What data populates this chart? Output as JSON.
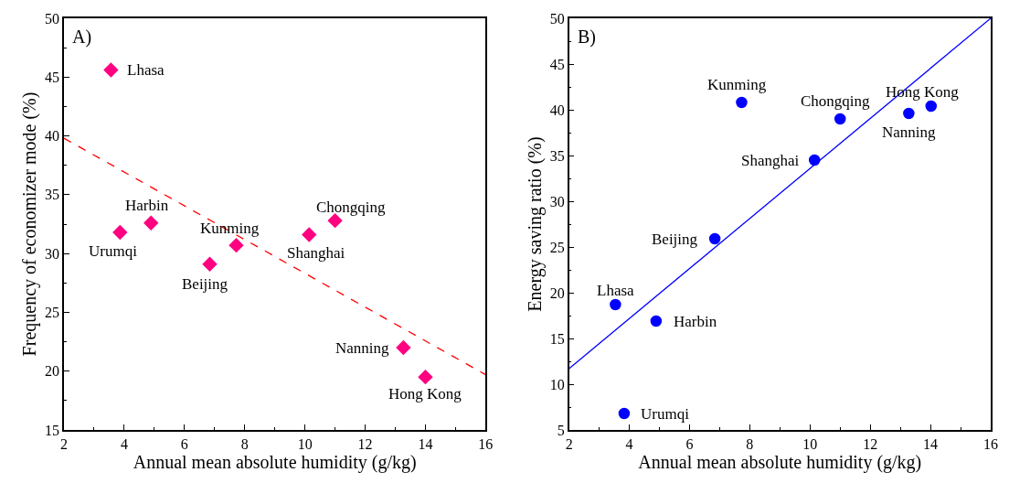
{
  "chart_data": [
    {
      "type": "scatter",
      "title": "A)",
      "xlabel": "Annual mean absolute humidity (g/kg)",
      "ylabel": "Frequency of economizer mode (%)",
      "xlim": [
        2,
        16
      ],
      "xticks": [
        2,
        4,
        6,
        8,
        10,
        12,
        14,
        16
      ],
      "ylim": [
        15,
        50
      ],
      "yticks": [
        15,
        20,
        25,
        30,
        35,
        40,
        45,
        50
      ],
      "series": [
        {
          "marker": "diamond",
          "color": "#ff0080",
          "x": [
            3.56,
            3.86,
            4.89,
            6.84,
            7.72,
            10.14,
            11.0,
            13.27,
            14.0
          ],
          "values": [
            45.6,
            31.8,
            32.6,
            29.1,
            30.7,
            31.6,
            32.8,
            22.0,
            19.5
          ]
        },
        {
          "type": "line",
          "color": "#ff0000",
          "line_style": "dashed",
          "x": [
            2,
            16
          ],
          "values": [
            39.8,
            19.7
          ]
        }
      ],
      "annotations": [
        {
          "text": "Lhasa",
          "x": 3.56,
          "y": 45.6
        },
        {
          "text": "Urumqi",
          "x": 3.86,
          "y": 31.8
        },
        {
          "text": "Harbin",
          "x": 4.89,
          "y": 32.6
        },
        {
          "text": "Beijing",
          "x": 6.84,
          "y": 29.1
        },
        {
          "text": "Kunming",
          "x": 7.72,
          "y": 30.7
        },
        {
          "text": "Shanghai",
          "x": 10.14,
          "y": 31.6
        },
        {
          "text": "Chongqing",
          "x": 11.0,
          "y": 32.8
        },
        {
          "text": "Nanning",
          "x": 13.27,
          "y": 22.0
        },
        {
          "text": "Hong Kong",
          "x": 14.0,
          "y": 19.5
        }
      ]
    },
    {
      "type": "scatter",
      "title": "B)",
      "xlabel": "Annual mean absolute humidity (g/kg)",
      "ylabel": "Energy saving ratio (%)",
      "xlim": [
        2,
        16
      ],
      "xticks": [
        2,
        4,
        6,
        8,
        10,
        12,
        14,
        16
      ],
      "ylim": [
        5,
        50
      ],
      "yticks": [
        5,
        10,
        15,
        20,
        25,
        30,
        35,
        40,
        45,
        50
      ],
      "series": [
        {
          "marker": "circle",
          "color": "#0000ff",
          "x": [
            3.54,
            3.83,
            4.89,
            6.84,
            7.73,
            10.15,
            11.0,
            13.28,
            14.02
          ],
          "values": [
            18.7,
            6.8,
            16.9,
            25.9,
            40.8,
            34.5,
            39.0,
            39.6,
            40.4
          ]
        },
        {
          "type": "line",
          "color": "#0000ff",
          "line_style": "solid",
          "x": [
            2,
            16
          ],
          "values": [
            11.7,
            50.0
          ]
        }
      ],
      "annotations": [
        {
          "text": "Lhasa",
          "x": 3.54,
          "y": 18.7
        },
        {
          "text": "Urumqi",
          "x": 3.83,
          "y": 6.8
        },
        {
          "text": "Harbin",
          "x": 4.89,
          "y": 16.9
        },
        {
          "text": "Beijing",
          "x": 6.84,
          "y": 25.9
        },
        {
          "text": "Kunming",
          "x": 7.73,
          "y": 40.8
        },
        {
          "text": "Shanghai",
          "x": 10.15,
          "y": 34.5
        },
        {
          "text": "Chongqing",
          "x": 11.0,
          "y": 39.0
        },
        {
          "text": "Nanning",
          "x": 13.28,
          "y": 39.6
        },
        {
          "text": "Hong Kong",
          "x": 14.02,
          "y": 40.4
        }
      ]
    }
  ]
}
